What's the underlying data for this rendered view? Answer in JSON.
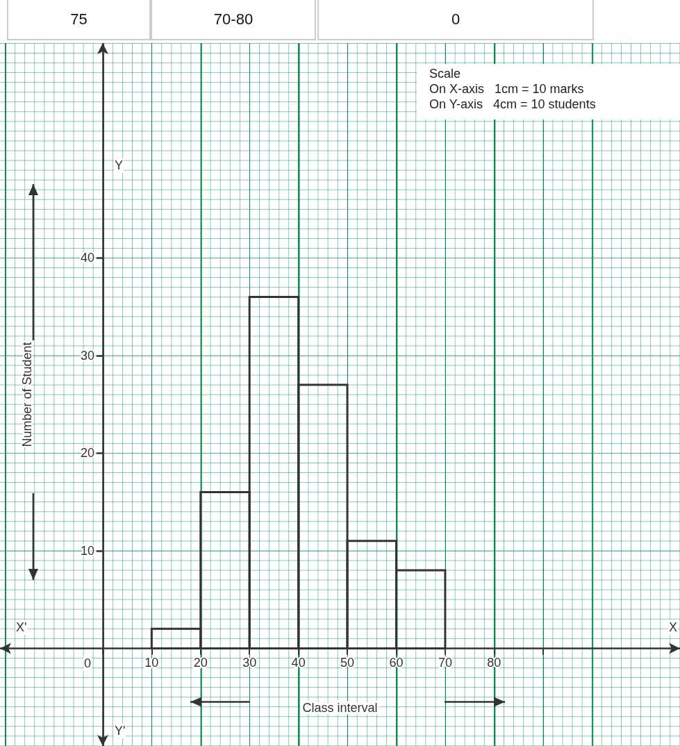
{
  "chart_data": {
    "type": "histogram",
    "bins": [
      10,
      20,
      30,
      40,
      50,
      60,
      70
    ],
    "values": [
      2,
      16,
      36,
      27,
      11,
      8
    ],
    "color": "#333333",
    "xlabel": "Class interval",
    "ylabel": "Number of Student",
    "xlim": [
      -21,
      118
    ],
    "ylim": [
      -10,
      62
    ],
    "xticks": [
      {
        "value": 0,
        "label": null
      },
      10,
      20,
      30,
      40,
      50,
      60,
      70,
      80,
      {
        "value": 90,
        "label": null
      }
    ],
    "yticks": [
      10,
      20,
      30,
      40
    ],
    "grid": true,
    "annotations": [
      "75",
      "70-80",
      "0",
      "Scale",
      "On X-axis   1cm = 10 marks",
      "On Y-axis   4cm = 10 students",
      "X'",
      "X",
      "Y",
      "Y'",
      "0"
    ]
  }
}
